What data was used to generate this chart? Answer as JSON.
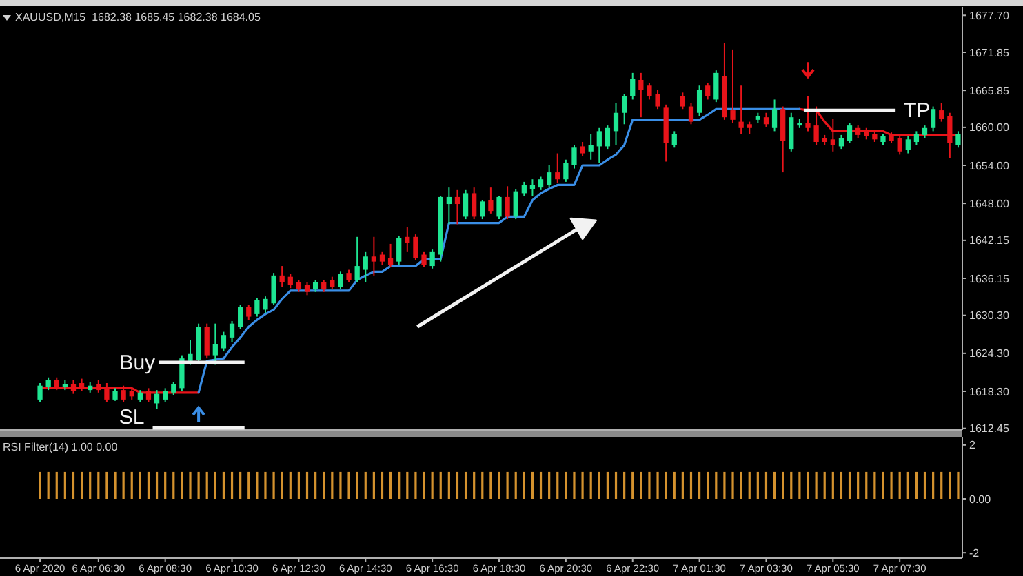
{
  "chart_data": [
    {
      "type": "candlestick",
      "title": "XAUUSD,M15  1682.38 1685.45 1682.38 1684.05",
      "categories": [
        null,
        null,
        null,
        null,
        null,
        null,
        null,
        null,
        null,
        null,
        null,
        null,
        null,
        null,
        null,
        null,
        null,
        null,
        null,
        null,
        null,
        null,
        null,
        null,
        null,
        null,
        null,
        null,
        null,
        null,
        null,
        null,
        null,
        null,
        null,
        null,
        null,
        null,
        null,
        null,
        null,
        null,
        null,
        null,
        null,
        null,
        null,
        null,
        null,
        null,
        null,
        null,
        null,
        null,
        null,
        null,
        null,
        null,
        null,
        null,
        null,
        null,
        null,
        null,
        null,
        null,
        null,
        null,
        null,
        null,
        null,
        null,
        null,
        null,
        null,
        null,
        null,
        null,
        null,
        null,
        null,
        null,
        null,
        null,
        null,
        null,
        null,
        null,
        null,
        null,
        null,
        null,
        null,
        null,
        null,
        null,
        null,
        null,
        null,
        null,
        null,
        null,
        null,
        null,
        null,
        null,
        null,
        null,
        null,
        null,
        null
      ],
      "ohlc": [
        [
          1617.0,
          1619.6,
          1616.6,
          1619.2
        ],
        [
          1619.0,
          1620.5,
          1618.5,
          1620.1
        ],
        [
          1620.1,
          1620.5,
          1618.5,
          1619.0
        ],
        [
          1619.0,
          1620.1,
          1618.5,
          1619.4
        ],
        [
          1619.4,
          1620.1,
          1617.9,
          1618.3
        ],
        [
          1619.6,
          1620.3,
          1618.3,
          1618.8
        ],
        [
          1618.5,
          1619.8,
          1618.1,
          1619.2
        ],
        [
          1619.4,
          1620.1,
          1618.1,
          1618.5
        ],
        [
          1618.8,
          1619.6,
          1616.6,
          1617.0
        ],
        [
          1617.0,
          1618.8,
          1616.8,
          1618.3
        ],
        [
          1618.5,
          1619.2,
          1616.6,
          1617.0
        ],
        [
          1618.3,
          1618.8,
          1617.0,
          1617.5
        ],
        [
          1617.0,
          1618.5,
          1616.6,
          1618.1
        ],
        [
          1618.3,
          1618.8,
          1616.6,
          1617.0
        ],
        [
          1616.4,
          1618.5,
          1615.5,
          1617.9
        ],
        [
          1617.0,
          1618.8,
          1616.6,
          1618.3
        ],
        [
          1618.1,
          1619.8,
          1617.7,
          1619.4
        ],
        [
          1618.8,
          1624.0,
          1618.3,
          1623.5
        ],
        [
          1623.1,
          1626.4,
          1622.5,
          1624.2
        ],
        [
          1623.3,
          1629.0,
          1622.9,
          1628.5
        ],
        [
          1628.5,
          1629.0,
          1623.5,
          1624.0
        ],
        [
          1624.0,
          1629.0,
          1622.5,
          1625.7
        ],
        [
          1625.1,
          1627.7,
          1624.6,
          1627.2
        ],
        [
          1626.8,
          1629.4,
          1626.1,
          1629.0
        ],
        [
          1628.5,
          1632.0,
          1628.1,
          1631.6
        ],
        [
          1631.6,
          1632.0,
          1629.6,
          1630.1
        ],
        [
          1630.5,
          1633.1,
          1630.1,
          1632.7
        ],
        [
          1631.2,
          1633.3,
          1630.7,
          1632.9
        ],
        [
          1632.2,
          1637.0,
          1632.0,
          1636.6
        ],
        [
          1636.6,
          1638.1,
          1634.8,
          1635.5
        ],
        [
          1636.4,
          1636.8,
          1634.6,
          1635.1
        ],
        [
          1635.5,
          1635.9,
          1634.0,
          1634.4
        ],
        [
          1635.1,
          1635.5,
          1633.5,
          1634.0
        ],
        [
          1634.4,
          1635.9,
          1634.0,
          1635.5
        ],
        [
          1635.5,
          1635.9,
          1634.0,
          1634.4
        ],
        [
          1635.9,
          1636.4,
          1634.4,
          1634.8
        ],
        [
          1634.8,
          1637.2,
          1634.4,
          1636.8
        ],
        [
          1637.0,
          1637.5,
          1635.5,
          1635.9
        ],
        [
          1635.9,
          1642.7,
          1635.5,
          1638.1
        ],
        [
          1637.5,
          1640.3,
          1635.5,
          1639.6
        ],
        [
          1639.6,
          1642.7,
          1636.6,
          1638.8
        ],
        [
          1639.9,
          1640.3,
          1638.3,
          1638.8
        ],
        [
          1639.4,
          1641.6,
          1637.9,
          1638.3
        ],
        [
          1638.8,
          1642.9,
          1638.3,
          1642.5
        ],
        [
          1642.7,
          1644.2,
          1640.3,
          1641.8
        ],
        [
          1642.7,
          1643.1,
          1639.0,
          1639.4
        ],
        [
          1639.9,
          1640.3,
          1637.9,
          1638.3
        ],
        [
          1638.1,
          1640.7,
          1637.7,
          1640.3
        ],
        [
          1639.9,
          1649.2,
          1638.8,
          1649.0
        ],
        [
          1647.9,
          1650.5,
          1644.7,
          1649.0
        ],
        [
          1649.0,
          1650.1,
          1644.7,
          1647.9
        ],
        [
          1645.9,
          1650.1,
          1645.5,
          1649.6
        ],
        [
          1649.6,
          1650.5,
          1645.5,
          1645.9
        ],
        [
          1645.9,
          1648.5,
          1645.5,
          1648.3
        ],
        [
          1648.5,
          1650.5,
          1646.4,
          1646.8
        ],
        [
          1645.9,
          1649.2,
          1645.5,
          1649.0
        ],
        [
          1649.0,
          1650.7,
          1645.5,
          1645.9
        ],
        [
          1645.9,
          1650.3,
          1645.5,
          1649.9
        ],
        [
          1649.6,
          1651.4,
          1649.2,
          1650.9
        ],
        [
          1650.3,
          1651.8,
          1649.2,
          1650.9
        ],
        [
          1650.5,
          1652.2,
          1650.1,
          1651.8
        ],
        [
          1650.9,
          1654.0,
          1650.5,
          1652.9
        ],
        [
          1652.9,
          1655.9,
          1651.2,
          1651.8
        ],
        [
          1651.8,
          1654.9,
          1651.4,
          1654.4
        ],
        [
          1654.0,
          1657.2,
          1653.5,
          1656.8
        ],
        [
          1657.0,
          1657.7,
          1655.5,
          1655.9
        ],
        [
          1656.2,
          1659.0,
          1654.9,
          1657.2
        ],
        [
          1657.0,
          1659.9,
          1654.4,
          1659.4
        ],
        [
          1657.0,
          1660.3,
          1656.6,
          1659.9
        ],
        [
          1659.4,
          1663.8,
          1657.2,
          1662.3
        ],
        [
          1662.3,
          1665.3,
          1660.5,
          1664.9
        ],
        [
          1664.9,
          1668.6,
          1664.4,
          1667.7
        ],
        [
          1667.5,
          1668.6,
          1661.6,
          1665.9
        ],
        [
          1666.6,
          1667.0,
          1664.4,
          1664.9
        ],
        [
          1665.3,
          1665.9,
          1662.9,
          1663.3
        ],
        [
          1663.1,
          1663.6,
          1654.6,
          1657.5
        ],
        [
          1657.2,
          1659.4,
          1656.8,
          1659.0
        ],
        [
          1664.9,
          1665.5,
          1662.9,
          1663.3
        ],
        [
          1663.3,
          1663.8,
          1660.5,
          1660.9
        ],
        [
          1662.3,
          1666.6,
          1661.8,
          1665.9
        ],
        [
          1666.6,
          1667.0,
          1664.4,
          1664.9
        ],
        [
          1664.4,
          1669.0,
          1664.0,
          1668.6
        ],
        [
          1668.1,
          1673.3,
          1661.2,
          1661.6
        ],
        [
          1662.7,
          1672.3,
          1660.7,
          1661.2
        ],
        [
          1660.9,
          1666.6,
          1659.0,
          1659.9
        ],
        [
          1660.5,
          1660.9,
          1659.0,
          1659.9
        ],
        [
          1661.2,
          1662.3,
          1660.7,
          1661.8
        ],
        [
          1661.6,
          1662.3,
          1660.1,
          1660.5
        ],
        [
          1659.9,
          1664.4,
          1659.4,
          1662.9
        ],
        [
          1662.9,
          1663.3,
          1652.9,
          1657.9
        ],
        [
          1656.6,
          1662.3,
          1656.2,
          1661.6
        ],
        [
          1660.3,
          1661.4,
          1659.9,
          1660.7
        ],
        [
          1660.7,
          1664.9,
          1659.4,
          1659.9
        ],
        [
          1660.3,
          1663.3,
          1657.2,
          1657.7
        ],
        [
          1658.3,
          1658.8,
          1657.2,
          1657.7
        ],
        [
          1658.1,
          1661.4,
          1656.2,
          1657.2
        ],
        [
          1657.0,
          1658.8,
          1656.6,
          1658.3
        ],
        [
          1657.9,
          1660.7,
          1657.5,
          1660.3
        ],
        [
          1659.9,
          1660.3,
          1658.3,
          1658.8
        ],
        [
          1659.4,
          1659.9,
          1658.1,
          1658.6
        ],
        [
          1659.0,
          1659.4,
          1657.7,
          1658.1
        ],
        [
          1657.7,
          1659.0,
          1657.2,
          1658.6
        ],
        [
          1658.8,
          1659.2,
          1657.5,
          1657.9
        ],
        [
          1658.3,
          1658.8,
          1655.7,
          1656.2
        ],
        [
          1656.4,
          1658.6,
          1655.9,
          1658.1
        ],
        [
          1657.7,
          1659.4,
          1657.2,
          1659.0
        ],
        [
          1658.8,
          1660.3,
          1658.3,
          1659.9
        ],
        [
          1659.9,
          1663.3,
          1659.4,
          1662.9
        ],
        [
          1662.7,
          1663.8,
          1660.9,
          1661.4
        ],
        [
          1661.8,
          1662.3,
          1655.1,
          1657.5
        ],
        [
          1657.2,
          1659.4,
          1656.8,
          1659.0
        ]
      ],
      "series": [
        {
          "type": "line",
          "color": "#e8141a",
          "values": [
            1618.8,
            1618.8,
            1618.8,
            1618.8,
            1618.8,
            1618.8,
            1618.8,
            1618.8,
            1618.8,
            1618.8,
            1618.8,
            1618.8,
            1618.1,
            1618.1,
            1618.1,
            1618.1,
            1618.1,
            1618.1,
            1618.1,
            1618.1,
            null,
            null,
            null,
            null,
            null,
            null,
            null,
            null,
            null,
            null,
            null,
            null,
            null,
            null,
            null,
            null,
            null,
            null,
            null,
            null,
            null,
            null,
            null,
            null,
            null,
            null,
            null,
            null,
            null,
            null,
            null,
            null,
            null,
            null,
            null,
            null,
            null,
            null,
            null,
            null,
            null,
            null,
            null,
            null,
            null,
            null,
            null,
            null,
            null,
            null,
            null,
            null,
            null,
            null,
            null,
            null,
            null,
            null,
            null,
            null,
            null,
            null,
            null,
            null,
            null,
            null,
            null,
            null,
            null,
            null,
            null,
            1662.9,
            1662.7,
            1662.7,
            1660.9,
            1659.4,
            1659.4,
            1659.4,
            1659.4,
            1659.4,
            1659.4,
            1659.4,
            1658.8,
            1658.8,
            1658.8,
            1658.8,
            1658.8,
            1658.8,
            1658.8,
            1658.8,
            1658.8
          ]
        },
        {
          "type": "line",
          "color": "#3a8ee6",
          "values": [
            null,
            null,
            null,
            null,
            null,
            null,
            null,
            null,
            null,
            null,
            null,
            null,
            null,
            null,
            null,
            null,
            null,
            null,
            null,
            1618.1,
            1623.1,
            1623.3,
            1623.5,
            1625.3,
            1626.8,
            1628.5,
            1629.6,
            1630.5,
            1631.2,
            1632.9,
            1634.2,
            1634.2,
            1634.2,
            1634.2,
            1634.2,
            1634.2,
            1634.2,
            1634.2,
            1635.9,
            1636.6,
            1637.2,
            1637.2,
            1638.1,
            1638.1,
            1638.1,
            1638.1,
            1639.2,
            1639.2,
            1639.2,
            1644.9,
            1644.9,
            1644.9,
            1644.9,
            1644.9,
            1644.9,
            1644.9,
            1645.9,
            1645.9,
            1645.9,
            1648.5,
            1649.6,
            1650.3,
            1650.9,
            1650.9,
            1650.9,
            1654.0,
            1654.0,
            1654.0,
            1654.9,
            1655.7,
            1657.2,
            1661.2,
            1661.2,
            1661.2,
            1661.2,
            1661.2,
            1661.2,
            1661.2,
            1661.2,
            1661.2,
            1662.0,
            1662.9,
            1662.9,
            1662.9,
            1662.9,
            1662.9,
            1662.9,
            1662.9,
            1662.9,
            1662.9,
            1662.9,
            1662.9,
            null,
            null,
            null,
            null,
            null,
            null,
            null,
            null,
            null,
            null,
            null,
            null,
            null,
            null,
            null,
            null,
            null,
            null,
            null
          ]
        }
      ],
      "ylim": [
        1612.2,
        1678.6
      ],
      "yticks": [
        {
          "value": 1677.7,
          "label": "1677.70"
        },
        1671.85,
        1665.85,
        {
          "value": 1660,
          "label": "1660.00"
        },
        {
          "value": 1654,
          "label": "1654.00"
        },
        {
          "value": 1648,
          "label": "1648.00"
        },
        1642.15,
        1636.15,
        {
          "value": 1630.3,
          "label": "1630.30"
        },
        {
          "value": 1624.3,
          "label": "1624.30"
        },
        {
          "value": 1618.3,
          "label": "1618.30"
        },
        1612.45
      ],
      "ref_lines": [
        {
          "axis": "y",
          "value": 1622.9,
          "label": "Buy",
          "color": "#f2f2f2"
        },
        {
          "axis": "y",
          "value": 1612.5,
          "label": "SL",
          "color": "#f2f2f2"
        },
        {
          "axis": "y",
          "value": 1662.7,
          "label": "TP",
          "color": "#f2f2f2"
        }
      ]
    },
    {
      "type": "bar",
      "title": "RSI Filter(14) 1.00 0.00",
      "categories": [
        "6 Apr 2020",
        null,
        null,
        null,
        null,
        null,
        null,
        "6 Apr 06:30",
        null,
        null,
        null,
        null,
        null,
        null,
        null,
        "6 Apr 08:30",
        null,
        null,
        null,
        null,
        null,
        null,
        null,
        "6 Apr 10:30",
        null,
        null,
        null,
        null,
        null,
        null,
        null,
        "6 Apr 12:30",
        null,
        null,
        null,
        null,
        null,
        null,
        null,
        "6 Apr 14:30",
        null,
        null,
        null,
        null,
        null,
        null,
        null,
        "6 Apr 16:30",
        null,
        null,
        null,
        null,
        null,
        null,
        null,
        "6 Apr 18:30",
        null,
        null,
        null,
        null,
        null,
        null,
        null,
        "6 Apr 20:30",
        null,
        null,
        null,
        null,
        null,
        null,
        null,
        "6 Apr 22:30",
        null,
        null,
        null,
        null,
        null,
        null,
        null,
        "7 Apr 01:30",
        null,
        null,
        null,
        null,
        null,
        null,
        null,
        "7 Apr 03:30",
        null,
        null,
        null,
        null,
        null,
        null,
        null,
        "7 Apr 05:30",
        null,
        null,
        null,
        null,
        null,
        null,
        null,
        "7 Apr 07:30",
        null,
        null,
        null,
        null,
        null,
        null,
        null
      ],
      "color": "#d4922e",
      "values": [
        1,
        1,
        1,
        1,
        1,
        1,
        1,
        1,
        1,
        1,
        1,
        1,
        1,
        1,
        1,
        1,
        1,
        1,
        1,
        1,
        1,
        1,
        1,
        1,
        1,
        1,
        1,
        1,
        1,
        1,
        1,
        1,
        1,
        1,
        1,
        1,
        1,
        1,
        1,
        1,
        1,
        1,
        1,
        1,
        1,
        1,
        1,
        1,
        1,
        1,
        1,
        1,
        1,
        1,
        1,
        1,
        1,
        1,
        1,
        1,
        1,
        1,
        1,
        1,
        1,
        1,
        1,
        1,
        1,
        1,
        1,
        1,
        1,
        1,
        1,
        1,
        1,
        1,
        1,
        1,
        1,
        1,
        1,
        1,
        1,
        1,
        1,
        1,
        1,
        1,
        1,
        1,
        1,
        1,
        1,
        1,
        1,
        1,
        1,
        1,
        1,
        1,
        1,
        1,
        1,
        1,
        1,
        1,
        1,
        1,
        1
      ],
      "ylim": [
        -2.2,
        2.2
      ],
      "yticks": [
        2,
        {
          "value": 0,
          "label": "0.00"
        },
        -2
      ]
    }
  ]
}
